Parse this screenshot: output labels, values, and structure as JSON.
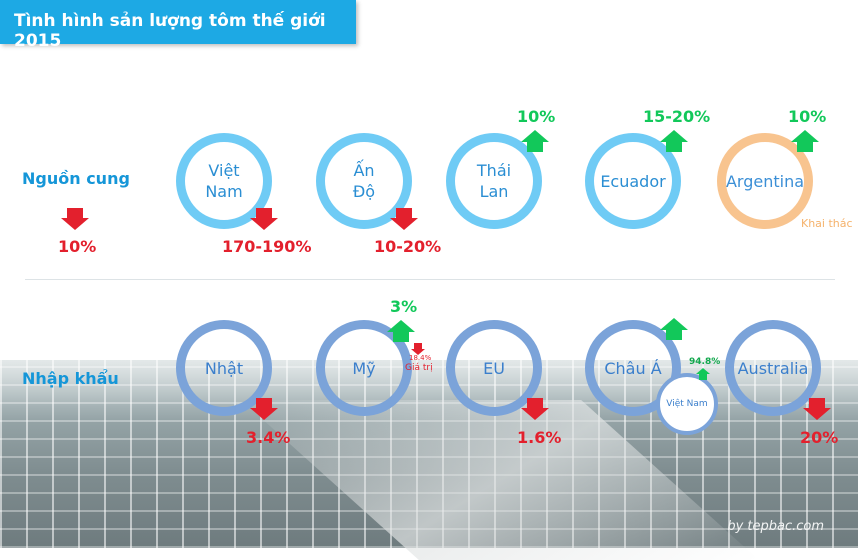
{
  "title": "Tình hình sản lượng tôm thế giới 2015",
  "credit": "by tepbac.com",
  "colors": {
    "title_bg": "#1da9e4",
    "ring_supply": "#6fcbf5",
    "ring_import": "#7ba3d9",
    "ring_argentina": "#f8c48f",
    "up": "#12c85a",
    "down": "#e3202d"
  },
  "supply": {
    "label": "Nguồn cung",
    "overall_change": "10%",
    "items": [
      {
        "line1": "Việt",
        "line2": "Nam",
        "change": "170-190%",
        "direction": "down"
      },
      {
        "line1": "Ấn",
        "line2": "Độ",
        "change": "10-20%",
        "direction": "down"
      },
      {
        "line1": "Thái",
        "line2": "Lan",
        "change": "10%",
        "direction": "up"
      },
      {
        "line1": "Ecuador",
        "change": "15-20%",
        "direction": "up"
      },
      {
        "line1": "Argentina",
        "change": "10%",
        "direction": "up",
        "note": "Khai thác"
      }
    ]
  },
  "imports": {
    "label": "Nhập khẩu",
    "items": [
      {
        "name": "Nhật",
        "change": "3.4%",
        "direction": "down"
      },
      {
        "name": "Mỹ",
        "change": "3%",
        "direction": "up",
        "sub_change": "18.4%",
        "sub_label": "Giá trị",
        "sub_direction": "down"
      },
      {
        "name": "EU",
        "change": "1.6%",
        "direction": "down"
      },
      {
        "name": "Châu Á",
        "direction": "up",
        "sub_name": "Việt Nam",
        "sub_change": "94.8%",
        "sub_direction": "up"
      },
      {
        "name": "Australia",
        "change": "20%",
        "direction": "down"
      }
    ]
  }
}
